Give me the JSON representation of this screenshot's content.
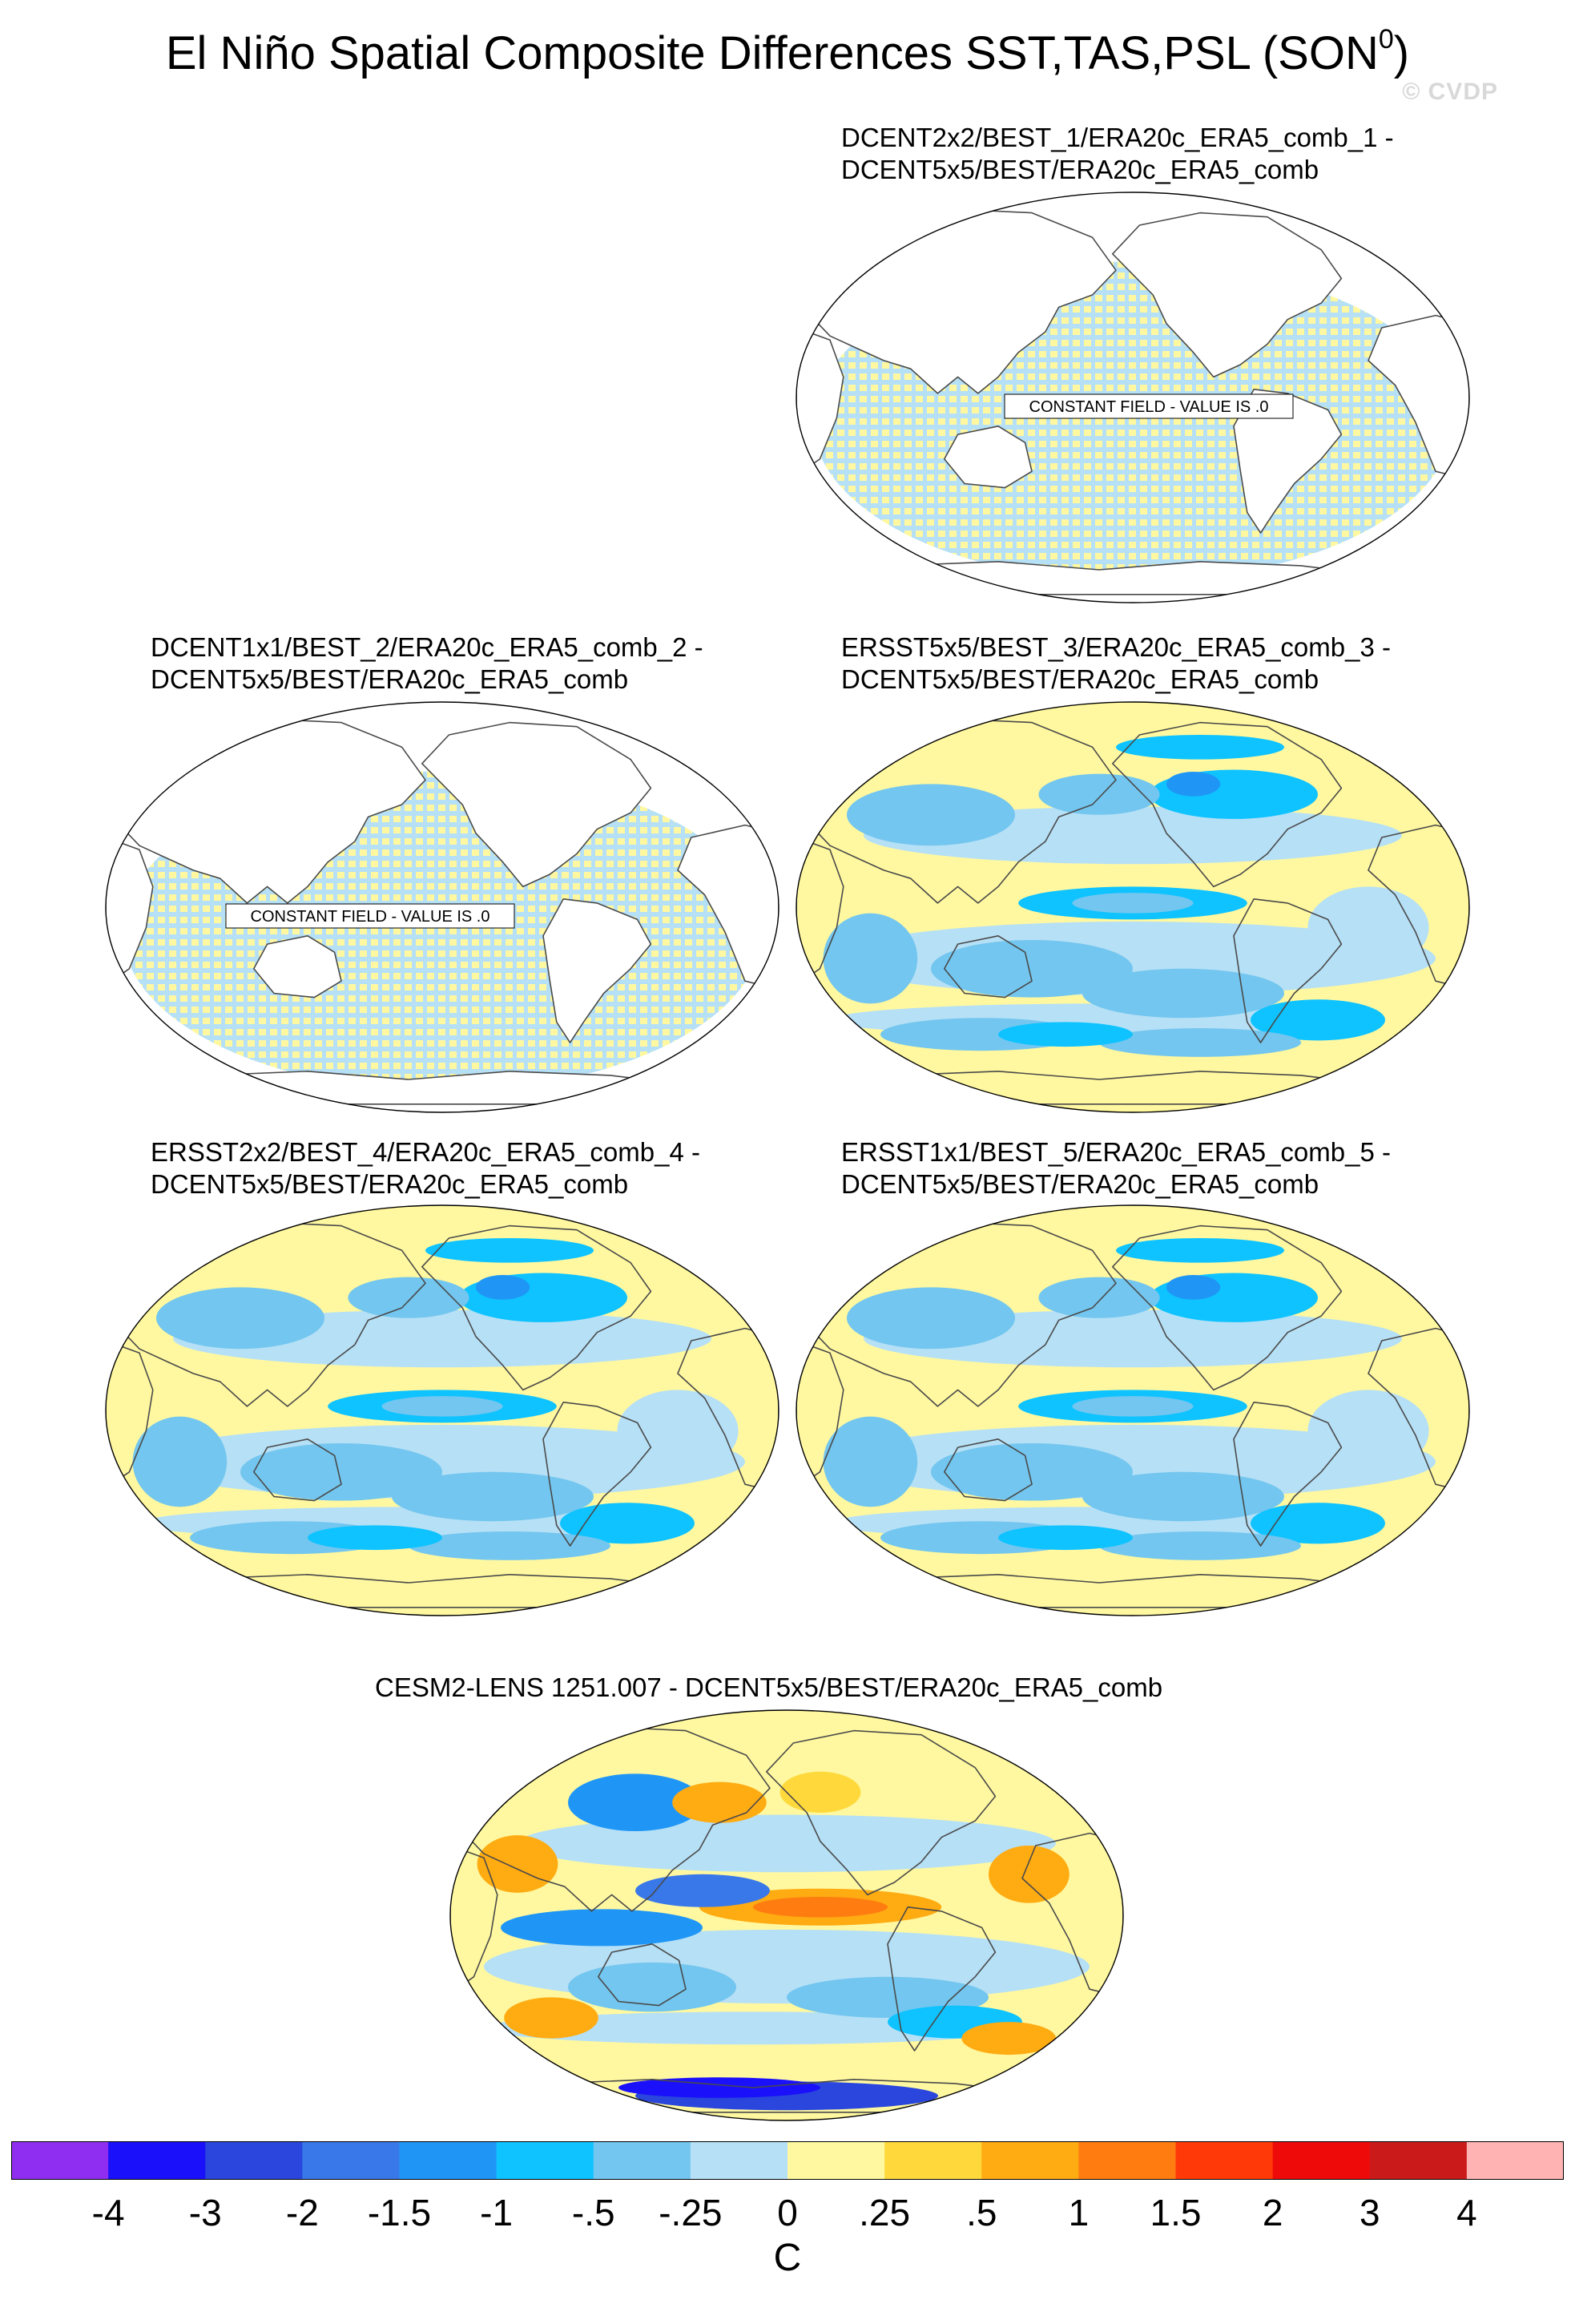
{
  "figure": {
    "title": "El Niño Spatial Composite Differences SST,TAS,PSL (SON",
    "title_sup": "0",
    "title_close": ")",
    "watermark": "© CVDP"
  },
  "panels": [
    {
      "line1": "DCENT2x2/BEST_1/ERA20c_ERA5_comb_1 -",
      "line2": "DCENT5x5/BEST/ERA20c_ERA5_comb",
      "style": "stripes",
      "note": "CONSTANT FIELD - VALUE IS .0"
    },
    {
      "line1": "DCENT1x1/BEST_2/ERA20c_ERA5_comb_2 -",
      "line2": "DCENT5x5/BEST/ERA20c_ERA5_comb",
      "style": "stripes",
      "note": "CONSTANT FIELD - VALUE IS .0"
    },
    {
      "line1": "ERSST5x5/BEST_3/ERA20c_ERA5_comb_3 -",
      "line2": "DCENT5x5/BEST/ERA20c_ERA5_comb",
      "style": "field"
    },
    {
      "line1": "ERSST2x2/BEST_4/ERA20c_ERA5_comb_4 -",
      "line2": "DCENT5x5/BEST/ERA20c_ERA5_comb",
      "style": "field"
    },
    {
      "line1": "ERSST1x1/BEST_5/ERA20c_ERA5_comb_5 -",
      "line2": "DCENT5x5/BEST/ERA20c_ERA5_comb",
      "style": "field"
    },
    {
      "line1": "CESM2-LENS 1251.007 - DCENT5x5/BEST/ERA20c_ERA5_comb",
      "line2": "",
      "style": "strong"
    }
  ],
  "colorbar": {
    "unit": "C",
    "tick_labels": [
      "-4",
      "-3",
      "-2",
      "-1.5",
      "-1",
      "-.5",
      "-.25",
      "0",
      ".25",
      ".5",
      "1",
      "1.5",
      "2",
      "3",
      "4"
    ],
    "colors": [
      "#8f2ef0",
      "#1a10fa",
      "#2a46dc",
      "#3978e9",
      "#1f96f6",
      "#0ec3ff",
      "#73c6ef",
      "#b6e0f6",
      "#fff8a0",
      "#ffd93c",
      "#ffab12",
      "#ff7d10",
      "#ff3a08",
      "#ef0a0a",
      "#cb1a1a",
      "#ffb3b3"
    ]
  }
}
